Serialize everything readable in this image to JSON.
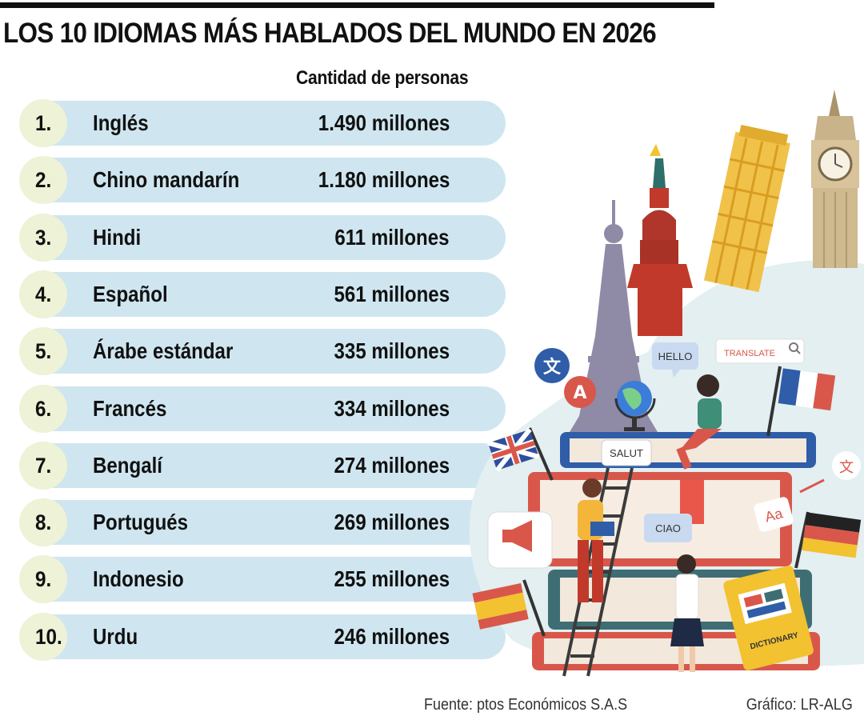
{
  "header": {
    "title": "LOS 10 IDIOMAS MÁS HABLADOS DEL MUNDO EN 2026",
    "column_label": "Cantidad de personas"
  },
  "chart_data": {
    "type": "table",
    "title": "LOS 10 IDIOMAS MÁS HABLADOS DEL MUNDO EN 2026",
    "columns": [
      "",
      "",
      "Cantidad de personas"
    ],
    "rows": [
      {
        "rank": "1.",
        "language": "Inglés",
        "speakers_label": "1.490 millones",
        "speakers_millions": 1490
      },
      {
        "rank": "2.",
        "language": "Chino mandarín",
        "speakers_label": "1.180 millones",
        "speakers_millions": 1180
      },
      {
        "rank": "3.",
        "language": "Hindi",
        "speakers_label": "611 millones",
        "speakers_millions": 611
      },
      {
        "rank": "4.",
        "language": "Español",
        "speakers_label": "561 millones",
        "speakers_millions": 561
      },
      {
        "rank": "5.",
        "language": "Árabe estándar",
        "speakers_label": "335 millones",
        "speakers_millions": 335
      },
      {
        "rank": "6.",
        "language": "Francés",
        "speakers_label": "334 millones",
        "speakers_millions": 334
      },
      {
        "rank": "7.",
        "language": "Bengalí",
        "speakers_label": "274 millones",
        "speakers_millions": 274
      },
      {
        "rank": "8.",
        "language": "Portugués",
        "speakers_label": "269 millones",
        "speakers_millions": 269
      },
      {
        "rank": "9.",
        "language": "Indonesio",
        "speakers_label": "255 millones",
        "speakers_millions": 255
      },
      {
        "rank": "10.",
        "language": "Urdu",
        "speakers_label": "246 millones",
        "speakers_millions": 246
      }
    ]
  },
  "illustration": {
    "bubbles": {
      "hello": "HELLO",
      "translate": "TRANSLATE",
      "salut": "SALUT",
      "ciao": "CIAO",
      "aa": "Aa",
      "a_letter": "A",
      "wen_glyph": "文",
      "dictionary": "DICTIONARY"
    },
    "colors": {
      "bar_fill": "#cfe6f0",
      "rank_circle": "#eef2d6",
      "blob": "#e3eff1"
    }
  },
  "footer": {
    "source": "Fuente: ptos Económicos S.A.S",
    "credit": "Gráfico: LR-ALG"
  }
}
